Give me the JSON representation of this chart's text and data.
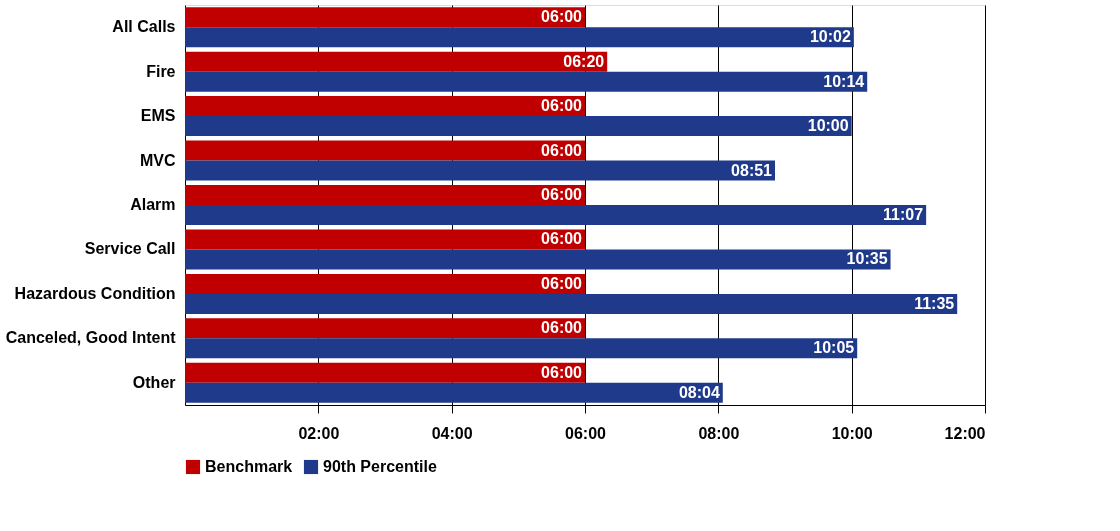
{
  "chart_data": {
    "type": "bar",
    "orientation": "horizontal",
    "categories": [
      "All Calls",
      "Fire",
      "EMS",
      "MVC",
      "Alarm",
      "Service Call",
      "Hazardous Condition",
      "Canceled, Good Intent",
      "Other"
    ],
    "series": [
      {
        "name": "Benchmark",
        "color": "#c00000",
        "values": [
          6,
          6.333,
          6,
          6,
          6,
          6,
          6,
          6,
          6
        ],
        "value_labels": [
          "06:00",
          "06:20",
          "06:00",
          "06:00",
          "06:00",
          "06:00",
          "06:00",
          "06:00",
          "06:00"
        ]
      },
      {
        "name": "90th Percentile",
        "color": "#1f3a8a",
        "values": [
          10.033,
          10.233,
          10,
          8.85,
          11.117,
          10.583,
          11.583,
          10.083,
          8.067
        ],
        "value_labels": [
          "10:02",
          "10:14",
          "10:00",
          "08:51",
          "11:07",
          "10:35",
          "11:35",
          "10:05",
          "08:04"
        ]
      }
    ],
    "xlim": [
      0,
      12
    ],
    "xticks": [
      {
        "value": 2,
        "label": "02:00"
      },
      {
        "value": 4,
        "label": "04:00"
      },
      {
        "value": 6,
        "label": "06:00"
      },
      {
        "value": 8,
        "label": "08:00"
      },
      {
        "value": 10,
        "label": "10:00"
      },
      {
        "value": 12,
        "label": "12:00"
      }
    ],
    "grid": "x",
    "legend": "bottom"
  }
}
